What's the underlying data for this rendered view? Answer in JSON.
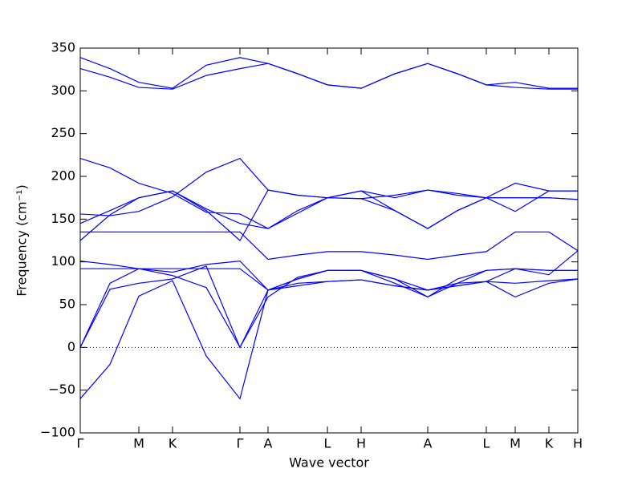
{
  "chart_data": {
    "type": "line",
    "xlabel": "Wave vector",
    "ylabel": "Frequency (cm⁻¹)",
    "color": "#0000ff",
    "hline": 0,
    "x": [
      0,
      0.37,
      0.73,
      1.15,
      1.57,
      1.99,
      2.34,
      2.71,
      3.08,
      3.5,
      3.92,
      4.33,
      4.7,
      5.06,
      5.42,
      5.84,
      6.2
    ],
    "xlim": [
      0,
      6.2
    ],
    "xticks": [
      {
        "value": 0,
        "label": "Γ"
      },
      {
        "value": 0.73,
        "label": "M"
      },
      {
        "value": 1.15,
        "label": "K"
      },
      {
        "value": 1.99,
        "label": "Γ"
      },
      {
        "value": 2.34,
        "label": "A"
      },
      {
        "value": 3.08,
        "label": "L"
      },
      {
        "value": 3.5,
        "label": "H"
      },
      {
        "value": 4.33,
        "label": "A"
      },
      {
        "value": 5.06,
        "label": "L"
      },
      {
        "value": 5.42,
        "label": "M"
      },
      {
        "value": 5.84,
        "label": "K"
      },
      {
        "value": 6.2,
        "label": "H"
      }
    ],
    "ylim": [
      -100,
      350
    ],
    "yticks": [
      {
        "value": -100,
        "label": "−100"
      },
      {
        "value": -50,
        "label": "−50"
      },
      0,
      50,
      100,
      150,
      200,
      250,
      300,
      350
    ],
    "series": [
      {
        "values": [
          339,
          326,
          310,
          303,
          330,
          339,
          332,
          320,
          307,
          303,
          320,
          332,
          320,
          307,
          310,
          303,
          303
        ]
      },
      {
        "values": [
          326,
          316,
          304,
          302,
          318,
          326,
          332,
          320,
          307,
          303,
          320,
          332,
          320,
          307,
          304,
          302,
          302
        ]
      },
      {
        "values": [
          221,
          210,
          192,
          180,
          158,
          156,
          139,
          160,
          175,
          183,
          175,
          184,
          180,
          175,
          192,
          183,
          183
        ]
      },
      {
        "values": [
          156,
          154,
          159,
          176,
          205,
          221,
          184,
          178,
          175,
          183,
          160,
          139,
          160,
          175,
          175,
          175,
          173
        ]
      },
      {
        "values": [
          145,
          160,
          175,
          183,
          162,
          145,
          139,
          157,
          175,
          174,
          178,
          184,
          178,
          175,
          159,
          183,
          183
        ]
      },
      {
        "values": [
          125,
          155,
          175,
          183,
          160,
          125,
          184,
          178,
          175,
          174,
          160,
          139,
          160,
          175,
          175,
          175,
          173
        ]
      },
      {
        "values": [
          135,
          135,
          135,
          135,
          135,
          135,
          103,
          108,
          112,
          112,
          108,
          103,
          108,
          112,
          135,
          135,
          113
        ]
      },
      {
        "values": [
          101,
          97,
          92,
          88,
          97,
          101,
          67,
          72,
          77,
          79,
          72,
          67,
          72,
          77,
          92,
          85,
          113
        ]
      },
      {
        "values": [
          92,
          92,
          92,
          92,
          92,
          92,
          67,
          80,
          90,
          90,
          80,
          59,
          80,
          90,
          92,
          90,
          90
        ]
      },
      {
        "values": [
          0,
          75,
          92,
          84,
          70,
          0,
          59,
          82,
          90,
          90,
          75,
          59,
          75,
          90,
          92,
          90,
          90
        ]
      },
      {
        "values": [
          0,
          68,
          75,
          80,
          95,
          0,
          67,
          80,
          90,
          90,
          80,
          67,
          72,
          77,
          75,
          78,
          80
        ]
      },
      {
        "values": [
          -60,
          -20,
          60,
          78,
          -10,
          -60,
          67,
          75,
          77,
          79,
          72,
          67,
          75,
          77,
          59,
          75,
          80
        ]
      }
    ]
  }
}
